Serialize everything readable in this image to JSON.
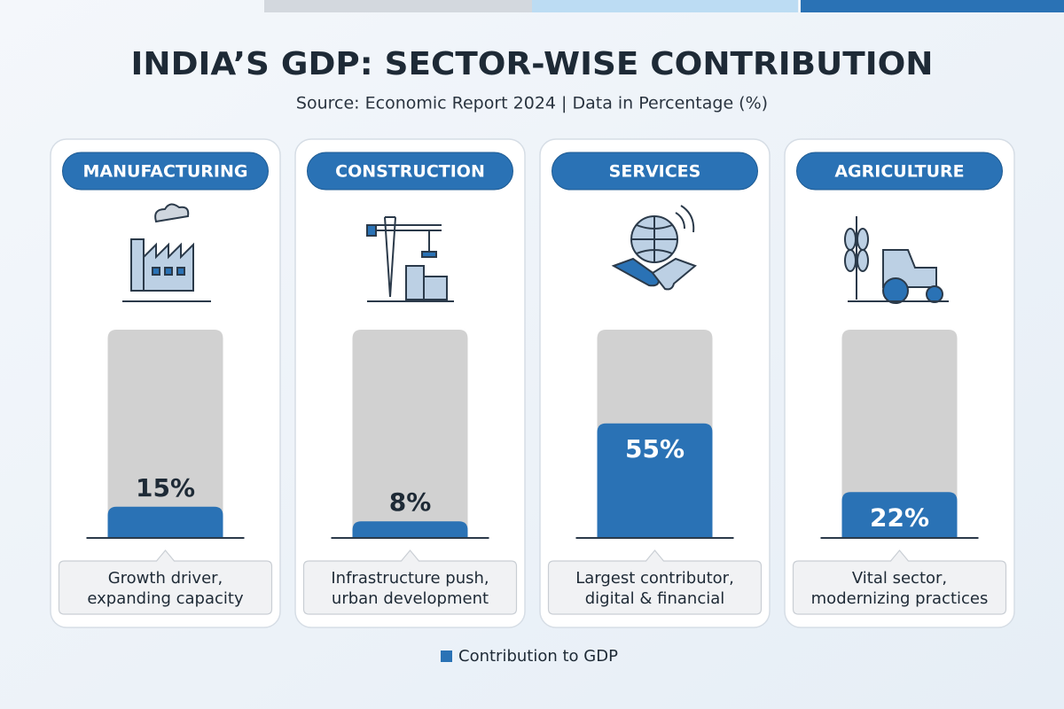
{
  "chart_data": {
    "type": "bar",
    "title": "INDIA’S GDP: SECTOR-WISE CONTRIBUTION",
    "subtitle": "Source: Economic Report 2024 | Data in Percentage (%)",
    "categories": [
      "MANUFACTURING",
      "CONSTRUCTION",
      "SERVICES",
      "AGRICULTURE"
    ],
    "series": [
      {
        "name": "Contribution to GDP",
        "color": "#2a72b5",
        "values": [
          15,
          8,
          55,
          22
        ],
        "value_labels": [
          "15%",
          "8%",
          "55%",
          "22%"
        ]
      }
    ],
    "notes": [
      [
        "Growth driver,",
        "expanding capacity"
      ],
      [
        "Infrastructure push,",
        "urban development"
      ],
      [
        "Largest contributor,",
        "digital & financial"
      ],
      [
        "Vital sector,",
        "modernizing practices"
      ]
    ],
    "ylim": [
      0,
      100
    ],
    "legend": "bottom"
  }
}
